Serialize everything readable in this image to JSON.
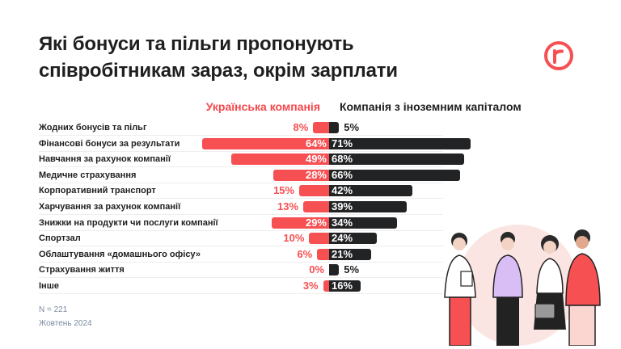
{
  "title": "Які бонуси та пільги пропонують співробітникам зараз, окрім зарплати",
  "title_lines": [
    "Які бонуси та пільги пропонують",
    "співробітникам зараз, окрім зарплати"
  ],
  "logo": "r",
  "footer": {
    "n": "N = 221",
    "date": "Жовтень 2024"
  },
  "colors": {
    "ukrainian": "#f65053",
    "foreign": "#222325"
  },
  "chart_data": {
    "type": "bar",
    "orientation": "horizontal-diverging",
    "legend_placement": "top",
    "categories": [
      "Жодних бонусів та пільг",
      "Фінансові бонуси за результати",
      "Навчання за рахунок компанії",
      "Медичне страхування",
      "Корпоративний транспорт",
      "Харчування за рахунок компанії",
      "Знижки на продукти чи послуги компанії",
      "Спортзал",
      "Облаштування «домашнього офісу»",
      "Страхування життя",
      "Інше"
    ],
    "series": [
      {
        "name": "Українська компанія",
        "values": [
          8,
          64,
          49,
          28,
          15,
          13,
          29,
          10,
          6,
          0,
          3
        ]
      },
      {
        "name": "Компанія з іноземним капіталом",
        "values": [
          5,
          71,
          68,
          66,
          42,
          39,
          34,
          24,
          21,
          5,
          16
        ]
      }
    ],
    "unit": "%"
  }
}
